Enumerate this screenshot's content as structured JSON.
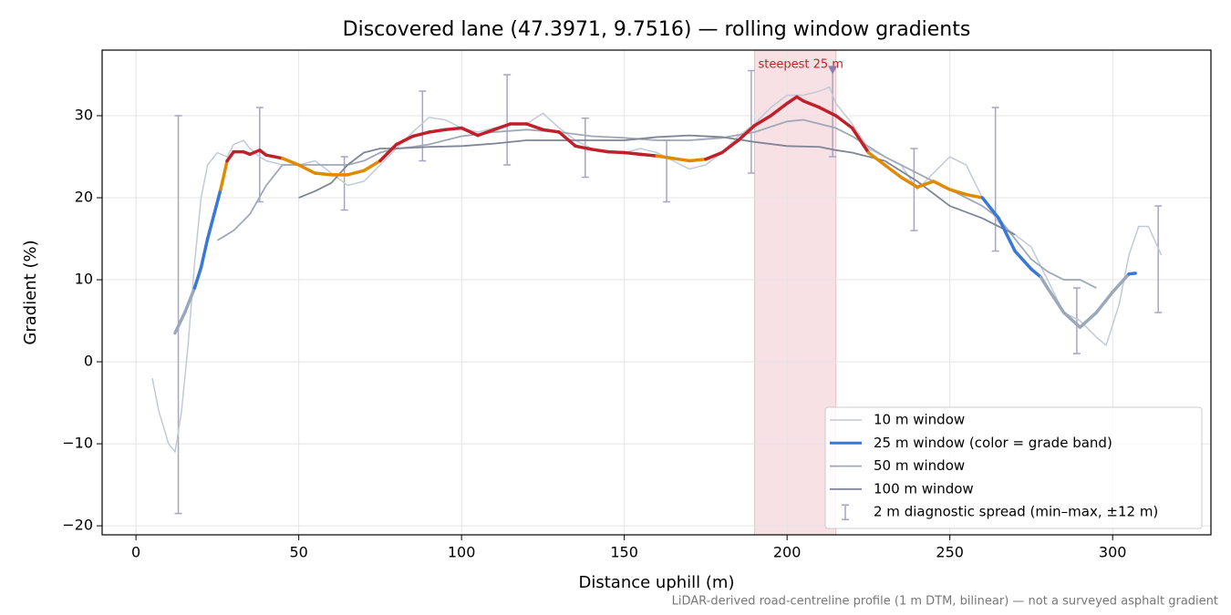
{
  "chart_data": {
    "type": "line",
    "title": "Discovered lane (47.3971, 9.7516) — rolling window gradients",
    "x_label": "Distance uphill (m)",
    "y_label": "Gradient (%)",
    "note": "LiDAR-derived road-centreline profile (1 m DTM, bilinear) — not a surveyed asphalt gradient",
    "xlim": [
      -10.4,
      330.2
    ],
    "ylim": [
      -21.1,
      38
    ],
    "xticks": [
      0,
      50,
      100,
      150,
      200,
      250,
      300
    ],
    "yticks": [
      {
        "value": -20,
        "label": "−20"
      },
      {
        "value": -10,
        "label": "−10"
      },
      0,
      10,
      20,
      30
    ],
    "grid": true,
    "legend_position": "lower right",
    "highlight": {
      "label": "steepest 25 m",
      "start": 190,
      "end": 215,
      "color": "#dc7882",
      "marker_x": 214,
      "marker_y": 35.5
    },
    "series": [
      {
        "name": "10 m window",
        "color": "#c3c9d6",
        "width": 1.5,
        "x": [
          5,
          7,
          10,
          12,
          14,
          16,
          18,
          20,
          22,
          25,
          28,
          30,
          33,
          35,
          38,
          40,
          45,
          50,
          55,
          60,
          65,
          70,
          75,
          80,
          85,
          90,
          95,
          100,
          105,
          110,
          115,
          120,
          125,
          130,
          135,
          140,
          145,
          150,
          155,
          160,
          165,
          170,
          175,
          180,
          185,
          190,
          195,
          200,
          205,
          210,
          213,
          215,
          220,
          225,
          230,
          235,
          240,
          245,
          250,
          255,
          260,
          265,
          270,
          275,
          280,
          285,
          290,
          295,
          298,
          302,
          305,
          308,
          311,
          315
        ],
        "values": [
          -2,
          -6,
          -10,
          -11,
          -6,
          2,
          12,
          20,
          24,
          25.5,
          25,
          26.5,
          27,
          26,
          25,
          24.5,
          24,
          24,
          24.5,
          23,
          21.5,
          22,
          24,
          26,
          28,
          29.8,
          29.5,
          28.5,
          28,
          28.5,
          29,
          29,
          30.3,
          28.5,
          27,
          26,
          25.5,
          25.5,
          26,
          25.5,
          24.5,
          23.5,
          24,
          25.5,
          27.5,
          29,
          31,
          32.5,
          32.5,
          33,
          33.5,
          31.5,
          29,
          26,
          25,
          24,
          21,
          23,
          25,
          24,
          20,
          17,
          15.5,
          14,
          10,
          6,
          5,
          3,
          2,
          7,
          13,
          16.5,
          16.5,
          13
        ]
      },
      {
        "name": "25 m window (color = grade band)",
        "color": "#3a78d8",
        "width": 3.5,
        "bands": [
          10,
          20,
          25
        ],
        "band_colors": [
          "#9aa8bb",
          "#3a78d8",
          "#e08a00",
          "#c0202a"
        ],
        "x": [
          12,
          15,
          18,
          20,
          22,
          24,
          26,
          28,
          30,
          33,
          35,
          38,
          40,
          45,
          50,
          55,
          60,
          65,
          70,
          75,
          80,
          85,
          90,
          95,
          100,
          105,
          110,
          115,
          120,
          125,
          130,
          135,
          140,
          145,
          150,
          155,
          160,
          165,
          170,
          175,
          180,
          185,
          190,
          195,
          200,
          203,
          205,
          210,
          215,
          220,
          225,
          230,
          235,
          240,
          245,
          250,
          255,
          260,
          265,
          270,
          275,
          278,
          280,
          285,
          290,
          295,
          300,
          305,
          307
        ],
        "values": [
          3.5,
          6,
          9,
          11.5,
          15,
          18,
          21,
          24.5,
          25.6,
          25.6,
          25.3,
          25.8,
          25.2,
          24.8,
          24,
          23,
          22.8,
          22.8,
          23.3,
          24.5,
          26.5,
          27.5,
          28,
          28.3,
          28.5,
          27.6,
          28.3,
          29,
          29,
          28.3,
          28,
          26.3,
          25.9,
          25.6,
          25.5,
          25.3,
          25.1,
          24.8,
          24.5,
          24.7,
          25.5,
          27,
          28.8,
          30,
          31.5,
          32.3,
          31.8,
          31,
          30,
          28.5,
          25.5,
          24,
          22.5,
          21.3,
          22,
          21,
          20.4,
          20,
          17.5,
          13.5,
          11.3,
          10.3,
          9,
          6,
          4.2,
          6,
          8.5,
          10.7,
          10.8
        ]
      },
      {
        "name": "50 m window",
        "color": "#a0a8b8",
        "width": 1.8,
        "x": [
          25,
          30,
          35,
          40,
          45,
          50,
          55,
          60,
          65,
          70,
          75,
          80,
          85,
          90,
          100,
          110,
          120,
          130,
          140,
          150,
          160,
          170,
          180,
          190,
          200,
          205,
          210,
          215,
          220,
          230,
          240,
          250,
          260,
          265,
          270,
          275,
          280,
          285,
          290,
          295
        ],
        "values": [
          14.8,
          16,
          18,
          21.5,
          24,
          24,
          24,
          24,
          24,
          24.5,
          25.5,
          26,
          26.2,
          26.5,
          27.5,
          28,
          28.3,
          28,
          27.5,
          27.3,
          27,
          27,
          27.3,
          28,
          29.3,
          29.5,
          29,
          28.5,
          27.5,
          25,
          23,
          21,
          19,
          17.5,
          15,
          12.5,
          11,
          10,
          10,
          9
        ]
      },
      {
        "name": "100 m window",
        "color": "#7d8596",
        "width": 1.8,
        "x": [
          50,
          55,
          60,
          65,
          70,
          75,
          80,
          90,
          100,
          110,
          120,
          130,
          140,
          150,
          160,
          170,
          180,
          190,
          200,
          210,
          215,
          220,
          230,
          240,
          250,
          260,
          270
        ],
        "values": [
          20,
          20.8,
          21.8,
          24,
          25.5,
          26,
          26,
          26.2,
          26.3,
          26.6,
          27,
          27,
          27,
          27,
          27.4,
          27.6,
          27.4,
          26.8,
          26.3,
          26.2,
          25.8,
          25.5,
          24.5,
          22,
          19,
          17.5,
          15.5
        ]
      }
    ],
    "error_bars": {
      "name": "2 m diagnostic spread (min–max, ±12 m)",
      "color": "#a9a3c4",
      "x": [
        13,
        38,
        64,
        88,
        114,
        138,
        163,
        189,
        214,
        239,
        264,
        289,
        314
      ],
      "lows": [
        -18.5,
        19.5,
        18.5,
        24.5,
        24,
        22.5,
        19.5,
        23,
        25,
        16,
        13.5,
        1,
        6
      ],
      "highs": [
        30,
        31,
        25,
        33,
        35,
        29.7,
        27,
        35.5,
        36,
        26,
        31,
        9,
        19
      ]
    }
  }
}
